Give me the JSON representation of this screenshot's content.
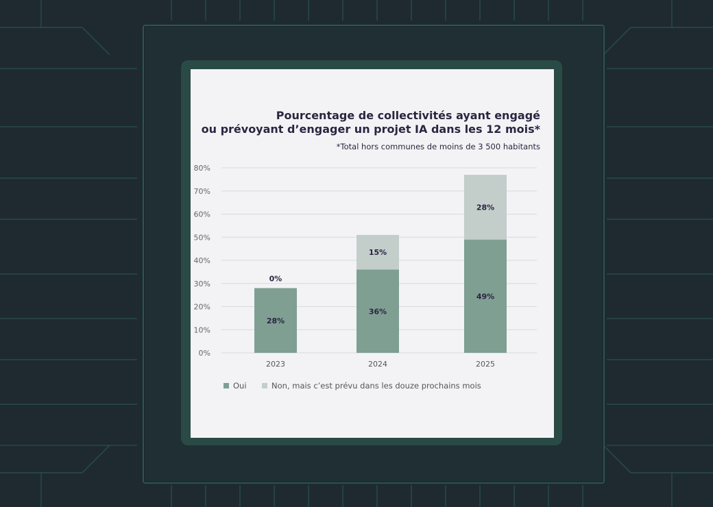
{
  "chart_data": {
    "type": "bar",
    "stacked": true,
    "title_line1": "Pourcentage de collectivités ayant engagé",
    "title_line2": "ou prévoyant d’engager un projet IA dans les 12 mois*",
    "subtitle": "*Total hors communes de moins de 3 500 habitants",
    "categories": [
      "2023",
      "2024",
      "2025"
    ],
    "series": [
      {
        "name": "Oui",
        "values": [
          28,
          36,
          49
        ],
        "labels": [
          "28%",
          "36%",
          "49%"
        ],
        "color": "#7f9f93"
      },
      {
        "name": "Non, mais c’est prévu dans les douze prochains mois",
        "values": [
          0,
          15,
          28
        ],
        "labels": [
          "0%",
          "15%",
          "28%"
        ],
        "color": "#c3cdca"
      }
    ],
    "yticks": [
      "0%",
      "10%",
      "20%",
      "30%",
      "40%",
      "50%",
      "60%",
      "70%",
      "80%"
    ],
    "ylim": [
      0,
      80
    ],
    "grid": true,
    "legend_position": "bottom-left"
  },
  "colors": {
    "background": "#1e2a30",
    "circuit": "#2c5650",
    "card": "#f3f3f5",
    "title": "#2b2540",
    "grid": "#d9d9d9"
  }
}
